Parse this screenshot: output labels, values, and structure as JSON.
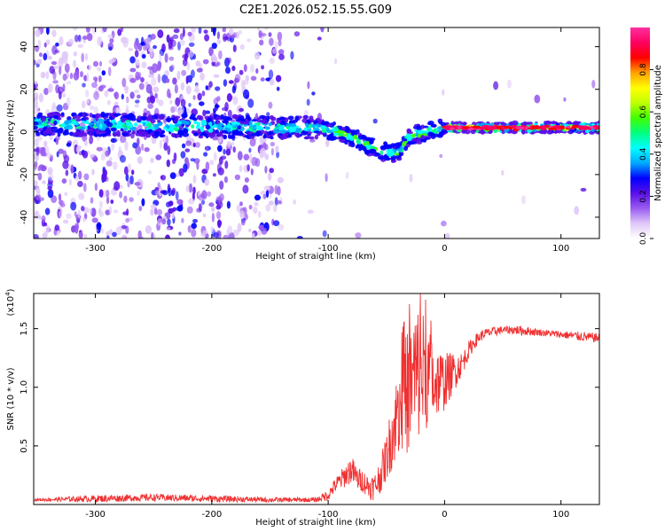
{
  "chart_data": [
    {
      "type": "heatmap",
      "title": "C2E1.2026.052.15.55.G09",
      "xlabel": "Height of straight line (km)",
      "ylabel": "Frequency (Hz)",
      "xlim": [
        -353,
        133
      ],
      "ylim": [
        -50,
        49
      ],
      "x_ticks": [
        -300,
        -200,
        -100,
        0,
        100
      ],
      "y_ticks": [
        -40,
        -20,
        0,
        20,
        40
      ],
      "grid": false,
      "description_points": {
        "center_track": [
          [
            -353,
            4
          ],
          [
            -250,
            3
          ],
          [
            -140,
            2
          ],
          [
            -110,
            2
          ],
          [
            -90,
            0
          ],
          [
            -70,
            -5
          ],
          [
            -55,
            -9
          ],
          [
            -40,
            -10
          ],
          [
            -30,
            -2
          ],
          [
            -10,
            1
          ],
          [
            0,
            2
          ],
          [
            50,
            2
          ],
          [
            100,
            2
          ],
          [
            133,
            2
          ]
        ],
        "bright_segment": [
          [
            -85,
            0
          ],
          [
            -40,
            -8
          ],
          [
            -20,
            1
          ],
          [
            0,
            2
          ],
          [
            70,
            2
          ],
          [
            133,
            2
          ]
        ]
      }
    },
    {
      "type": "colorbar",
      "label": "Normalized spectral amplitude",
      "range": [
        0.0,
        1.0
      ],
      "ticks": [
        0.0,
        0.2,
        0.4,
        0.6,
        0.8
      ],
      "tick_labels": [
        "0.0",
        "0.2",
        "0.4",
        "0.6",
        "0.8"
      ],
      "colors": [
        "#ffffff",
        "#e0c8f8",
        "#9a5cf0",
        "#5a10e8",
        "#0000ff",
        "#00a8ff",
        "#00ffff",
        "#00ff80",
        "#40ff00",
        "#c0ff00",
        "#ffff00",
        "#ffa000",
        "#ff0000",
        "#ff0060",
        "#ff30a0"
      ]
    },
    {
      "type": "line",
      "xlabel": "Height of straight line (km)",
      "ylabel": "SNR (10 * v/v)",
      "y_multiplier": "(x10",
      "y_multiplier_exp": "4",
      "xlim": [
        -353,
        133
      ],
      "ylim": [
        0,
        1.8
      ],
      "x_ticks": [
        -300,
        -200,
        -100,
        0,
        100
      ],
      "y_ticks": [
        0.5,
        1.0,
        1.5
      ],
      "y_tick_labels": [
        "0.5",
        "1.0",
        "1.5"
      ],
      "color": "#f03030",
      "series": [
        {
          "x": [
            -353,
            -300,
            -250,
            -200,
            -150,
            -110,
            -100,
            -95,
            -90,
            -85,
            -80,
            -75,
            -70,
            -65,
            -60,
            -55,
            -50,
            -45,
            -40,
            -35,
            -30,
            -25,
            -20,
            -15,
            -10,
            -5,
            0,
            5,
            10,
            15,
            20,
            25,
            30,
            35,
            40,
            45,
            50,
            60,
            70,
            80,
            90,
            100,
            110,
            120,
            133
          ],
          "y": [
            0.04,
            0.05,
            0.06,
            0.05,
            0.04,
            0.04,
            0.08,
            0.15,
            0.2,
            0.25,
            0.3,
            0.22,
            0.2,
            0.15,
            0.15,
            0.25,
            0.4,
            0.6,
            0.8,
            0.9,
            1.0,
            1.1,
            1.15,
            1.1,
            1.05,
            1.05,
            1.05,
            1.1,
            1.15,
            1.2,
            1.3,
            1.38,
            1.43,
            1.46,
            1.47,
            1.48,
            1.49,
            1.49,
            1.48,
            1.47,
            1.46,
            1.45,
            1.44,
            1.43,
            1.42
          ],
          "spread": [
            0.01,
            0.03,
            0.03,
            0.03,
            0.02,
            0.02,
            0.05,
            0.06,
            0.08,
            0.1,
            0.12,
            0.1,
            0.1,
            0.1,
            0.12,
            0.15,
            0.2,
            0.3,
            0.4,
            0.5,
            0.55,
            0.6,
            0.6,
            0.45,
            0.35,
            0.3,
            0.25,
            0.2,
            0.15,
            0.1,
            0.08,
            0.06,
            0.05,
            0.04,
            0.04,
            0.04,
            0.03,
            0.04,
            0.04,
            0.03,
            0.03,
            0.03,
            0.04,
            0.04,
            0.04
          ]
        }
      ]
    }
  ]
}
